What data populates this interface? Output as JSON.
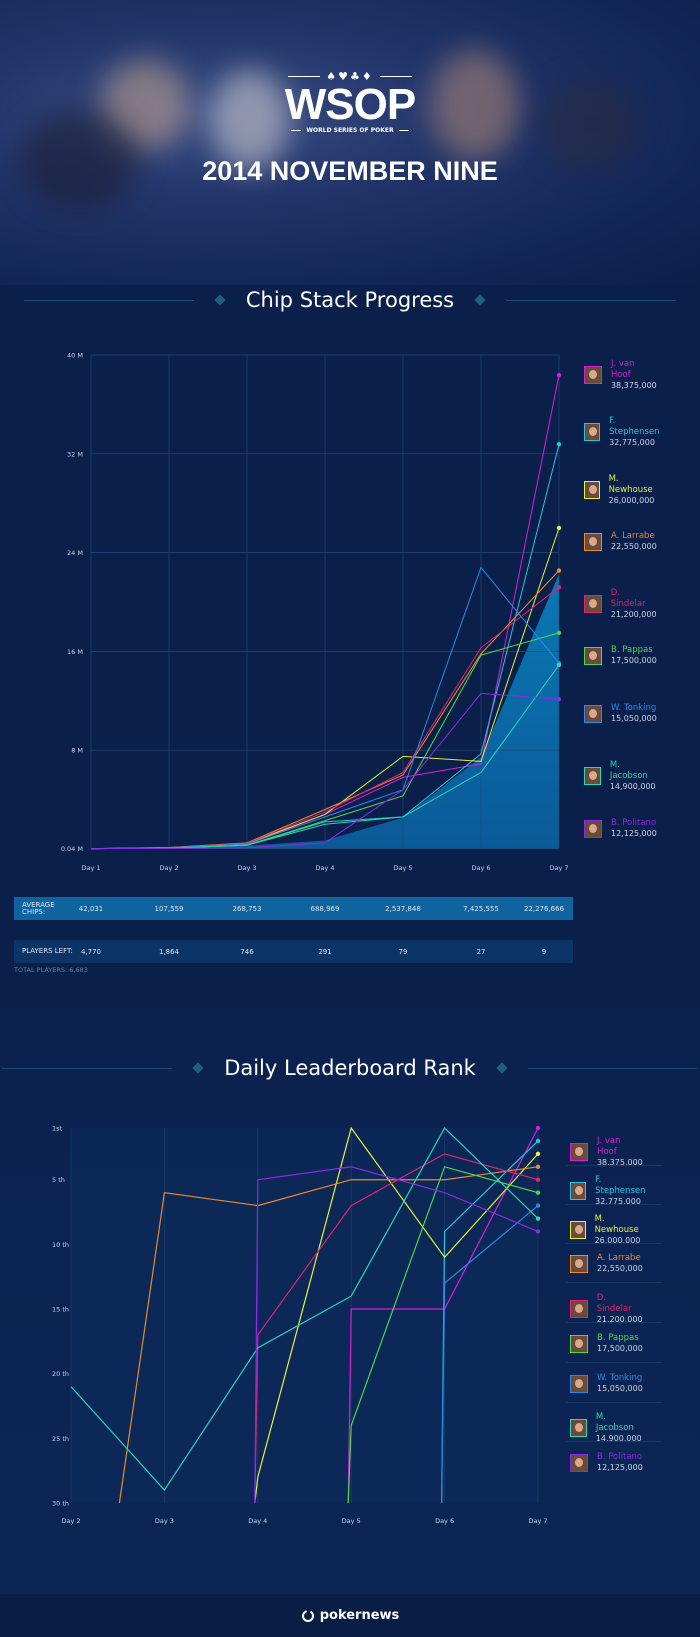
{
  "header": {
    "logo_suits": "♠♥♣♦",
    "logo_word": "WSOP",
    "logo_sub": "WORLD SERIES OF POKER",
    "title": "2014 NOVEMBER NINE"
  },
  "players": [
    {
      "name": "J. van Hoof",
      "chips": "38,375,000",
      "color": "#d81fd6"
    },
    {
      "name": "F. Stephensen",
      "chips": "32,775,000",
      "color": "#26c6e2"
    },
    {
      "name": "M. Newhouse",
      "chips": "26,000,000",
      "color": "#e6f23a"
    },
    {
      "name": "A. Larrabe",
      "chips": "22,550,000",
      "color": "#ea8a2a"
    },
    {
      "name": "D. Sindelar",
      "chips": "21,200,000",
      "color": "#e0246e"
    },
    {
      "name": "B. Pappas",
      "chips": "17,500,000",
      "color": "#4cd84a"
    },
    {
      "name": "W. Tonking",
      "chips": "15,050,000",
      "color": "#2a8ae6"
    },
    {
      "name": "M. Jacobson",
      "chips": "14,900,000",
      "color": "#2ad8b4"
    },
    {
      "name": "B. Politano",
      "chips": "12,125,000",
      "color": "#8c2ae6"
    }
  ],
  "table": {
    "avg_label": "AVERAGE CHIPS:",
    "avg_values": [
      "42,031",
      "107,559",
      "268,753",
      "688,969",
      "2,537,848",
      "7,425,555",
      "22,276,666"
    ],
    "players_label": "PLAYERS LEFT:",
    "players_values": [
      "4,770",
      "1,864",
      "746",
      "291",
      "79",
      "27",
      "9"
    ],
    "total": "TOTAL PLAYERS: 6,683"
  },
  "chart_data": [
    {
      "type": "line",
      "title": "Chip Stack Progress",
      "x": [
        "Day 1",
        "Day 2",
        "Day 3",
        "Day 4",
        "Day 5",
        "Day 6",
        "Day 7"
      ],
      "ylim": [
        0,
        40
      ],
      "yticks": [
        0.04,
        8,
        16,
        24,
        32,
        40
      ],
      "ytick_labels": [
        "0.04 M",
        "8 M",
        "16 M",
        "24 M",
        "32 M",
        "40 M"
      ],
      "unit": "M",
      "grid": true,
      "legend": "right",
      "area": {
        "values": [
          0.042,
          0.108,
          0.269,
          0.689,
          2.538,
          7.426,
          22.277
        ]
      },
      "series": [
        {
          "name": "J. van Hoof",
          "values": [
            0.03,
            0.1,
            0.35,
            2.8,
            5.8,
            6.9,
            38.375
          ]
        },
        {
          "name": "F. Stephensen",
          "values": [
            0.03,
            0.08,
            0.3,
            2.2,
            2.6,
            7.7,
            32.775
          ]
        },
        {
          "name": "M. Newhouse",
          "values": [
            0.03,
            0.1,
            0.45,
            2.8,
            7.5,
            7.1,
            26.0
          ]
        },
        {
          "name": "A. Larrabe",
          "values": [
            0.03,
            0.12,
            0.5,
            3.2,
            6.0,
            15.8,
            22.55
          ]
        },
        {
          "name": "D. Sindelar",
          "values": [
            0.03,
            0.1,
            0.45,
            3.0,
            6.2,
            16.3,
            21.2
          ]
        },
        {
          "name": "B. Pappas",
          "values": [
            0.03,
            0.08,
            0.3,
            2.3,
            4.3,
            15.7,
            17.5
          ]
        },
        {
          "name": "W. Tonking",
          "values": [
            0.03,
            0.1,
            0.4,
            2.6,
            4.8,
            22.8,
            15.05
          ]
        },
        {
          "name": "M. Jacobson",
          "values": [
            0.03,
            0.08,
            0.3,
            2.0,
            2.6,
            6.2,
            14.9
          ]
        },
        {
          "name": "B. Politano",
          "values": [
            0.03,
            0.05,
            0.1,
            0.5,
            4.8,
            12.6,
            12.125
          ]
        }
      ]
    },
    {
      "type": "line",
      "title": "Daily Leaderboard Rank",
      "x": [
        "Day 2",
        "Day 3",
        "Day 4",
        "Day 5",
        "Day 6",
        "Day 7"
      ],
      "ylim": [
        30,
        1
      ],
      "yticks": [
        1,
        5,
        10,
        15,
        20,
        25,
        30
      ],
      "ytick_labels": [
        "1st",
        "5 th",
        "10 th",
        "15 th",
        "20 th",
        "25 th",
        "30 th"
      ],
      "grid": true,
      "legend": "right",
      "series": [
        {
          "name": "J. van Hoof",
          "values": [
            null,
            null,
            null,
            15,
            15,
            1
          ]
        },
        {
          "name": "F. Stephensen",
          "values": [
            null,
            null,
            null,
            null,
            9,
            2
          ]
        },
        {
          "name": "M. Newhouse",
          "values": [
            null,
            null,
            28,
            1,
            11,
            3
          ]
        },
        {
          "name": "A. Larrabe",
          "values": [
            null,
            6,
            7,
            5,
            5,
            4
          ]
        },
        {
          "name": "D. Sindelar",
          "values": [
            null,
            null,
            17,
            7,
            3,
            5
          ]
        },
        {
          "name": "B. Pappas",
          "values": [
            null,
            null,
            null,
            24,
            4,
            6
          ]
        },
        {
          "name": "W. Tonking",
          "values": [
            null,
            null,
            null,
            null,
            13,
            7
          ]
        },
        {
          "name": "M. Jacobson",
          "values": [
            21,
            29,
            18,
            14,
            1,
            8
          ]
        },
        {
          "name": "B. Politano",
          "values": [
            null,
            null,
            5,
            4,
            6,
            9
          ]
        }
      ]
    }
  ],
  "footer": {
    "brand": "pokernews"
  }
}
